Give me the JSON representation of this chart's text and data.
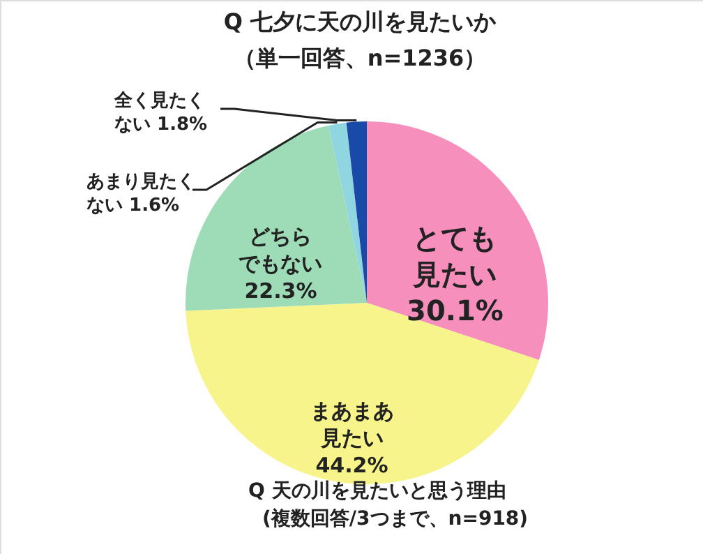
{
  "chart_data": {
    "type": "pie",
    "title": "Q 七夕に天の川を見たいか",
    "subtitle": "（単一回答、n=1236）",
    "categories": [
      "とても見たい",
      "まあまあ見たい",
      "どちらでもない",
      "あまり見たくない",
      "全く見たくない"
    ],
    "values": [
      30.1,
      44.2,
      22.3,
      1.6,
      1.8
    ],
    "value_labels": [
      "30.1%",
      "44.2%",
      "22.3%",
      "1.6%",
      "1.8%"
    ],
    "colors": [
      "#f78fbd",
      "#f6f48a",
      "#9edcb8",
      "#8fd6e0",
      "#1a4aa8"
    ],
    "annotations": [
      "Q 天の川を見たいと思う理由",
      "(複数回答/3つまで、n=918)"
    ]
  }
}
